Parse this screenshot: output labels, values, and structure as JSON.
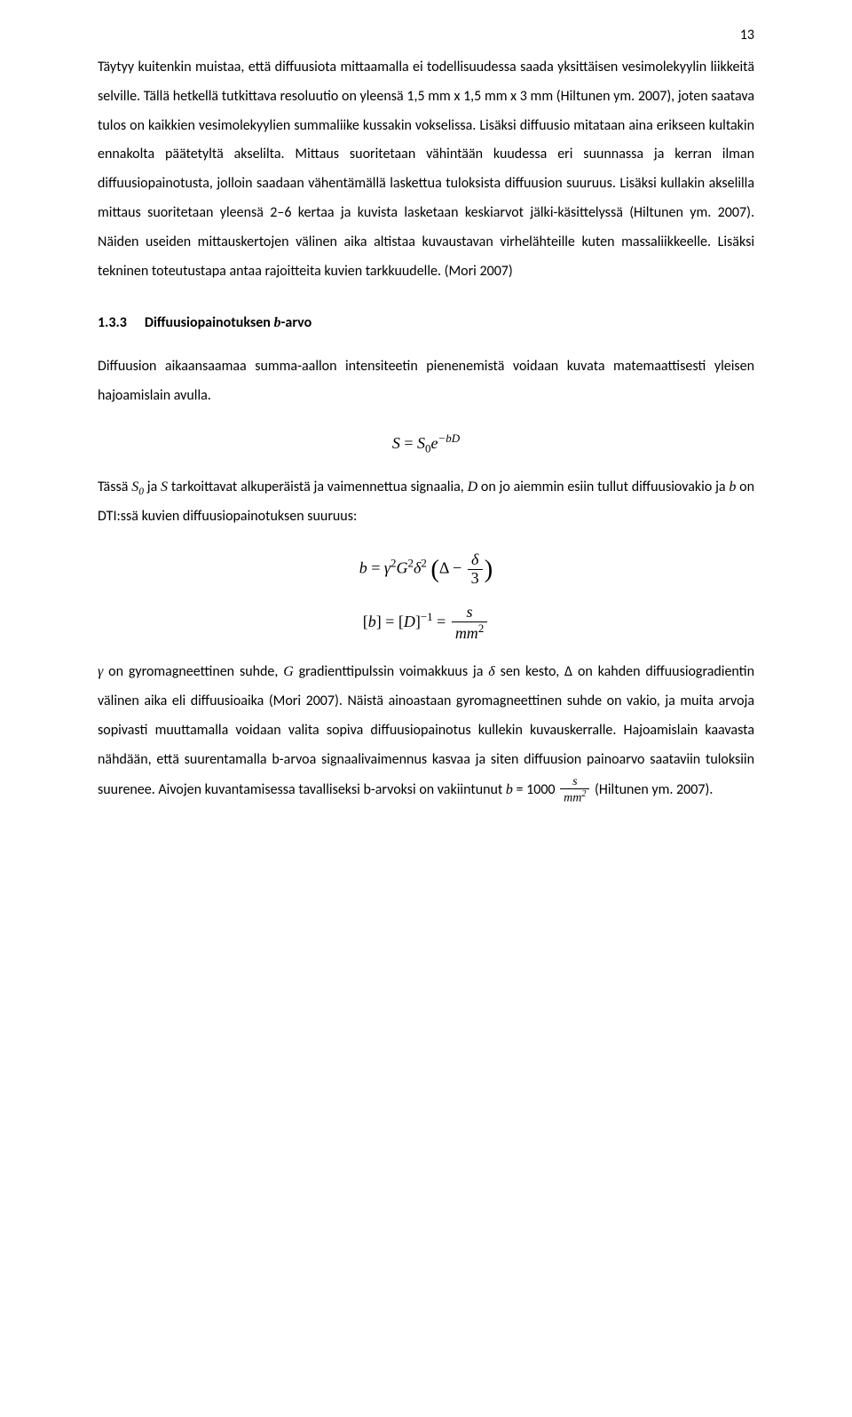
{
  "page_number": "13",
  "p1": "Täytyy kuitenkin muistaa, että diffuusiota mittaamalla ei todellisuudessa saada yksittäisen vesimolekyylin liikkeitä selville. Tällä hetkellä tutkittava resoluutio on yleensä 1,5 mm x 1,5 mm x 3 mm (Hiltunen ym. 2007), joten saatava tulos on kaikkien vesimolekyylien summaliike kussakin vokselissa. Lisäksi diffuusio mitataan aina erikseen kultakin ennakolta päätetyltä akselilta. Mittaus suoritetaan vähintään kuudessa eri suunnassa ja kerran ilman diffuusiopainotusta, jolloin saadaan vähentämällä laskettua tuloksista diffuusion suuruus. Lisäksi kullakin akselilla mittaus suoritetaan yleensä 2–6 kertaa ja kuvista lasketaan keskiarvot jälki-käsittelyssä (Hiltunen ym. 2007). Näiden useiden mittauskertojen välinen aika altistaa kuvaustavan virhelähteille kuten massaliikkeelle. Lisäksi tekninen toteutustapa antaa rajoitteita kuvien tarkkuudelle. (Mori 2007)",
  "heading_number": "1.3.3",
  "heading_text_prefix": "Diffuusiopainotuksen ",
  "heading_text_var": "b",
  "heading_text_suffix": "-arvo",
  "p2": "Diffuusion aikaansaamaa summa-aallon intensiteetin pienenemistä voidaan kuvata matemaattisesti yleisen hajoamislain avulla.",
  "eq1_S": "S",
  "eq1_eq": " = ",
  "eq1_S0": "S",
  "eq1_sub0": "0",
  "eq1_e": "e",
  "eq1_sup": "−bD",
  "p3_a": "Tässä ",
  "p3_S0": "S",
  "p3_S0sub": "0",
  "p3_b": " ja ",
  "p3_S": "S",
  "p3_c": " tarkoittavat alkuperäistä ja vaimennettua signaalia, ",
  "p3_D": "D",
  "p3_d": " on jo aiemmin esiin tullut diffuusiovakio ja ",
  "p3_bvar": "b",
  "p3_e": " on DTI:ssä kuvien diffuusiopainotuksen suuruus:",
  "eq2_b": "b",
  "eq2_eq": " = ",
  "eq2_g": "γ",
  "eq2_2a": "2",
  "eq2_G": "G",
  "eq2_2b": "2",
  "eq2_d": "δ",
  "eq2_2c": "2",
  "eq2_Delta": "Δ",
  "eq2_minus": " − ",
  "eq2_num": "δ",
  "eq2_den": "3",
  "eq3_lb": "[",
  "eq3_b": "b",
  "eq3_rb": "]",
  "eq3_eq1": " = [",
  "eq3_D": "D",
  "eq3_rb2": "]",
  "eq3_m1": "−1",
  "eq3_eq2": " = ",
  "eq3_num": "s",
  "eq3_den_mm": "mm",
  "eq3_den_2": "2",
  "p4_a": "γ",
  "p4_txt1": " on gyromagneettinen suhde, ",
  "p4_G": "G",
  "p4_txt2": " gradienttipulssin voimakkuus ja ",
  "p4_delta": "δ",
  "p4_txt3": " sen kesto, Δ on kahden diffuusiogradientin välinen aika eli diffuusioaika (Mori 2007). Näistä ainoastaan gyromagneettinen suhde on vakio, ja muita arvoja sopivasti muuttamalla voidaan valita sopiva diffuusiopainotus kullekin kuvauskerralle. Hajoamislain kaavasta nähdään, että suurentamalla b-arvoa signaalivaimennus kasvaa ja siten diffuusion painoarvo saataviin tuloksiin suurenee. Aivojen kuvantamisessa tavalliseksi b-arvoksi on vakiintunut ",
  "p4_bv": "b",
  "p4_txt4": " = 1000 ",
  "p4_frac_num": "s",
  "p4_frac_den_mm": "mm",
  "p4_frac_den_2": "2",
  "p4_txt5": " (Hiltunen ym. 2007)."
}
